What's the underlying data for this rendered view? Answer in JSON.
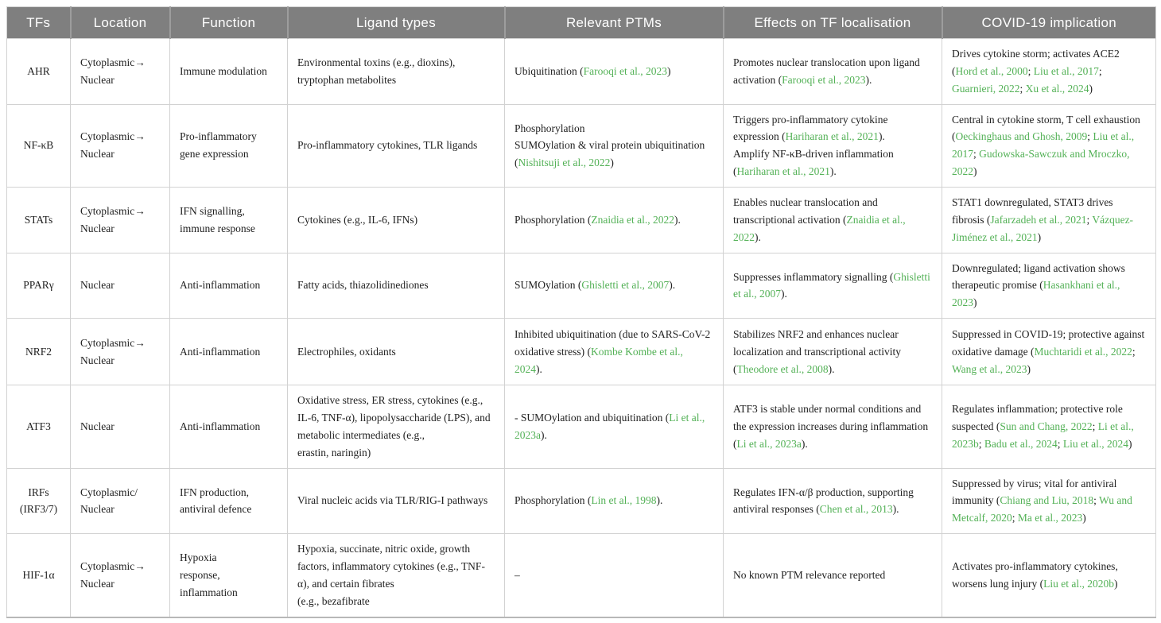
{
  "colors": {
    "header_bg": "#7f7f7f",
    "header_text": "#ffffff",
    "citation_green": "#53b156",
    "body_text": "#212121",
    "grid_border": "#d2d2d2"
  },
  "table": {
    "columns": [
      {
        "key": "tf",
        "label": "TFs"
      },
      {
        "key": "location",
        "label": "Location"
      },
      {
        "key": "function",
        "label": "Function"
      },
      {
        "key": "ligand",
        "label": "Ligand types"
      },
      {
        "key": "ptm",
        "label": "Relevant PTMs"
      },
      {
        "key": "effects",
        "label": "Effects on TF localisation"
      },
      {
        "key": "covid",
        "label": "COVID-19 implication"
      }
    ],
    "rows": [
      {
        "tf": "AHR",
        "location": "Cytoplasmic→\nNuclear",
        "function": "Immune modulation",
        "ligand": "Environmental toxins (e.g., dioxins), tryptophan metabolites",
        "ptm": [
          {
            "text": "Ubiquitination ("
          },
          {
            "text": "Farooqi et al., 2023",
            "cite": true
          },
          {
            "text": ")"
          }
        ],
        "effects": [
          {
            "text": "Promotes nuclear translocation upon ligand activation ("
          },
          {
            "text": "Farooqi et al., 2023",
            "cite": true
          },
          {
            "text": ")."
          }
        ],
        "covid": [
          {
            "text": "Drives cytokine storm; activates ACE2 ("
          },
          {
            "text": "Hord et al., 2000",
            "cite": true
          },
          {
            "text": "; "
          },
          {
            "text": "Liu et al., 2017",
            "cite": true
          },
          {
            "text": "; "
          },
          {
            "text": "Guarnieri, 2022",
            "cite": true
          },
          {
            "text": "; "
          },
          {
            "text": "Xu et al., 2024",
            "cite": true
          },
          {
            "text": ")"
          }
        ]
      },
      {
        "tf": "NF-κB",
        "location": "Cytoplasmic→\nNuclear",
        "function": "Pro-inflammatory\ngene expression",
        "ligand": "Pro-inflammatory cytokines, TLR ligands",
        "ptm": [
          {
            "text": "Phosphorylation\nSUMOylation & viral protein ubiquitination ("
          },
          {
            "text": "Nishitsuji et al., 2022",
            "cite": true
          },
          {
            "text": ")"
          }
        ],
        "effects": [
          {
            "text": "Triggers pro-inflammatory cytokine expression ("
          },
          {
            "text": "Hariharan et al., 2021",
            "cite": true
          },
          {
            "text": ").\nAmplify NF-κB-driven inflammation ("
          },
          {
            "text": "Hariharan et al., 2021",
            "cite": true
          },
          {
            "text": ")."
          }
        ],
        "covid": [
          {
            "text": "Central in cytokine storm, T cell exhaustion ("
          },
          {
            "text": "Oeckinghaus and Ghosh, 2009",
            "cite": true
          },
          {
            "text": "; "
          },
          {
            "text": "Liu et al., 2017",
            "cite": true
          },
          {
            "text": "; "
          },
          {
            "text": "Gudowska-Sawczuk and Mroczko, 2022",
            "cite": true
          },
          {
            "text": ")"
          }
        ]
      },
      {
        "tf": "STATs",
        "location": "Cytoplasmic→\nNuclear",
        "function": "IFN signalling,\nimmune response",
        "ligand": "Cytokines (e.g., IL-6, IFNs)",
        "ptm": [
          {
            "text": "Phosphorylation ("
          },
          {
            "text": "Znaidia et al., 2022",
            "cite": true
          },
          {
            "text": ")."
          }
        ],
        "effects": [
          {
            "text": "Enables nuclear translocation and transcriptional activation ("
          },
          {
            "text": "Znaidia et al., 2022",
            "cite": true
          },
          {
            "text": ")."
          }
        ],
        "covid": [
          {
            "text": "STAT1 downregulated, STAT3 drives fibrosis ("
          },
          {
            "text": "Jafarzadeh et al., 2021",
            "cite": true
          },
          {
            "text": "; "
          },
          {
            "text": "Vázquez-Jiménez et al., 2021",
            "cite": true
          },
          {
            "text": ")"
          }
        ]
      },
      {
        "tf": "PPARγ",
        "location": "Nuclear",
        "function": "Anti-inflammation",
        "ligand": "Fatty acids, thiazolidinediones",
        "ptm": [
          {
            "text": "SUMOylation ("
          },
          {
            "text": "Ghisletti et al., 2007",
            "cite": true
          },
          {
            "text": ")."
          }
        ],
        "effects": [
          {
            "text": "Suppresses inflammatory signalling ("
          },
          {
            "text": "Ghisletti et al., 2007",
            "cite": true
          },
          {
            "text": ")."
          }
        ],
        "covid": [
          {
            "text": "Downregulated; ligand activation shows therapeutic promise ("
          },
          {
            "text": "Hasankhani et al., 2023",
            "cite": true
          },
          {
            "text": ")"
          }
        ]
      },
      {
        "tf": "NRF2",
        "location": "Cytoplasmic→\nNuclear",
        "function": "Anti-inflammation",
        "ligand": "Electrophiles, oxidants",
        "ptm": [
          {
            "text": "Inhibited ubiquitination (due to SARS-CoV-2 oxidative stress) ("
          },
          {
            "text": "Kombe Kombe et al., 2024",
            "cite": true
          },
          {
            "text": ")."
          }
        ],
        "effects": [
          {
            "text": "Stabilizes NRF2 and enhances nuclear localization and transcriptional activity ("
          },
          {
            "text": "Theodore et al., 2008",
            "cite": true
          },
          {
            "text": ")."
          }
        ],
        "covid": [
          {
            "text": "Suppressed in COVID-19; protective against oxidative damage ("
          },
          {
            "text": "Muchtaridi et al., 2022",
            "cite": true
          },
          {
            "text": "; "
          },
          {
            "text": "Wang et al., 2023",
            "cite": true
          },
          {
            "text": ")"
          }
        ]
      },
      {
        "tf": "ATF3",
        "location": "Nuclear",
        "function": "Anti-inflammation",
        "ligand": "Oxidative stress, ER stress, cytokines (e.g., IL-6, TNF-α), lipopolysaccharide (LPS), and metabolic intermediates (e.g.,\nerastin, naringin)",
        "ptm": [
          {
            "text": "- SUMOylation and ubiquitination ("
          },
          {
            "text": "Li et al., 2023a",
            "cite": true
          },
          {
            "text": ")."
          }
        ],
        "effects": [
          {
            "text": "ATF3 is stable under normal conditions and the expression increases during inflammation ("
          },
          {
            "text": "Li et al., 2023a",
            "cite": true
          },
          {
            "text": ")."
          }
        ],
        "covid": [
          {
            "text": "Regulates inflammation; protective role suspected ("
          },
          {
            "text": "Sun and Chang, 2022",
            "cite": true
          },
          {
            "text": "; "
          },
          {
            "text": "Li et al., 2023b",
            "cite": true
          },
          {
            "text": "; "
          },
          {
            "text": "Badu et al., 2024",
            "cite": true
          },
          {
            "text": "; "
          },
          {
            "text": "Liu et al., 2024",
            "cite": true
          },
          {
            "text": ")"
          }
        ]
      },
      {
        "tf": "IRFs\n(IRF3/7)",
        "location": "Cytoplasmic/\nNuclear",
        "function": "IFN production,\nantiviral defence",
        "ligand": "Viral nucleic acids via TLR/RIG-I pathways",
        "ptm": [
          {
            "text": "Phosphorylation ("
          },
          {
            "text": "Lin et al., 1998",
            "cite": true
          },
          {
            "text": ")."
          }
        ],
        "effects": [
          {
            "text": "Regulates IFN-α/β production, supporting antiviral responses ("
          },
          {
            "text": "Chen et al., 2013",
            "cite": true
          },
          {
            "text": ")."
          }
        ],
        "covid": [
          {
            "text": "Suppressed by virus; vital for antiviral immunity ("
          },
          {
            "text": "Chiang and Liu, 2018",
            "cite": true
          },
          {
            "text": "; "
          },
          {
            "text": "Wu and Metcalf, 2020",
            "cite": true
          },
          {
            "text": "; "
          },
          {
            "text": "Ma et al., 2023",
            "cite": true
          },
          {
            "text": ")"
          }
        ]
      },
      {
        "tf": "HIF-1α",
        "location": "Cytoplasmic→\nNuclear",
        "function": "Hypoxia\nresponse,\ninflammation",
        "ligand": "Hypoxia, succinate, nitric oxide, growth factors, inflammatory cytokines (e.g., TNF-α), and certain fibrates\n(e.g., bezafibrate",
        "ptm": "–",
        "effects": "No known PTM relevance reported",
        "covid": [
          {
            "text": "Activates pro-inflammatory cytokines, worsens lung injury ("
          },
          {
            "text": "Liu et al., 2020b",
            "cite": true
          },
          {
            "text": ")"
          }
        ]
      }
    ]
  }
}
